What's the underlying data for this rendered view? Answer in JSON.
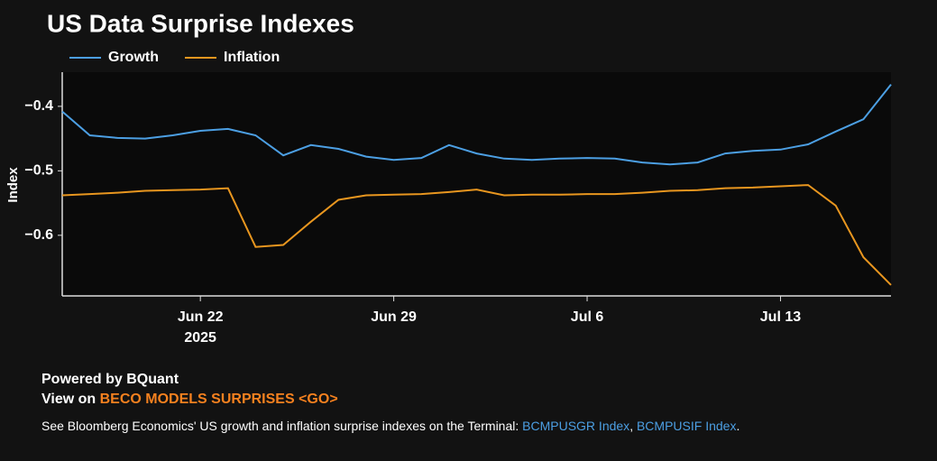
{
  "chart_data": {
    "type": "line",
    "title": "US Data Surprise Indexes",
    "y_label": "Index",
    "x": [
      "2025-06-17",
      "2025-06-18",
      "2025-06-19",
      "2025-06-20",
      "2025-06-21",
      "2025-06-22",
      "2025-06-23",
      "2025-06-24",
      "2025-06-25",
      "2025-06-26",
      "2025-06-27",
      "2025-06-28",
      "2025-06-29",
      "2025-06-30",
      "2025-07-01",
      "2025-07-02",
      "2025-07-03",
      "2025-07-04",
      "2025-07-05",
      "2025-07-06",
      "2025-07-07",
      "2025-07-08",
      "2025-07-09",
      "2025-07-10",
      "2025-07-11",
      "2025-07-12",
      "2025-07-13",
      "2025-07-14",
      "2025-07-15",
      "2025-07-16",
      "2025-07-17"
    ],
    "series": [
      {
        "name": "Growth",
        "color": "#4c9fe3",
        "values": [
          -0.408,
          -0.445,
          -0.449,
          -0.45,
          -0.445,
          -0.438,
          -0.435,
          -0.445,
          -0.476,
          -0.46,
          -0.466,
          -0.478,
          -0.483,
          -0.48,
          -0.46,
          -0.473,
          -0.481,
          -0.483,
          -0.481,
          -0.48,
          -0.481,
          -0.487,
          -0.49,
          -0.487,
          -0.473,
          -0.469,
          -0.467,
          -0.459,
          -0.439,
          -0.42,
          -0.366
        ]
      },
      {
        "name": "Inflation",
        "color": "#e8961f",
        "values": [
          -0.538,
          -0.536,
          -0.534,
          -0.531,
          -0.53,
          -0.529,
          -0.527,
          -0.618,
          -0.615,
          -0.579,
          -0.545,
          -0.538,
          -0.537,
          -0.536,
          -0.533,
          -0.529,
          -0.538,
          -0.537,
          -0.537,
          -0.536,
          -0.536,
          -0.534,
          -0.531,
          -0.53,
          -0.527,
          -0.526,
          -0.524,
          -0.522,
          -0.554,
          -0.634,
          -0.677
        ]
      }
    ],
    "xlim": [
      "2025-06-17",
      "2025-07-17"
    ],
    "xticks": [
      {
        "value": "2025-06-22",
        "label": "Jun 22",
        "sublabel": "2025"
      },
      {
        "value": "2025-06-29",
        "label": "Jun 29"
      },
      {
        "value": "2025-07-06",
        "label": "Jul 6"
      },
      {
        "value": "2025-07-13",
        "label": "Jul 13"
      }
    ],
    "ylim": [
      -0.694,
      -0.347
    ],
    "yticks": [
      {
        "value": -0.6,
        "label": "−0.6"
      },
      {
        "value": -0.5,
        "label": "−0.5"
      },
      {
        "value": -0.4,
        "label": "−0.4"
      }
    ],
    "legend": "top-left",
    "grid": false
  },
  "footer": {
    "powered": "Powered by BQuant",
    "view_prefix": "View on ",
    "view_link": "BECO MODELS SURPRISES <GO>",
    "note": [
      "See Bloomberg Economics' US growth and inflation surprise indexes on the Terminal: ",
      "BCMPUSGR Index",
      ", ",
      "BCMPUSIF Index",
      "."
    ]
  }
}
